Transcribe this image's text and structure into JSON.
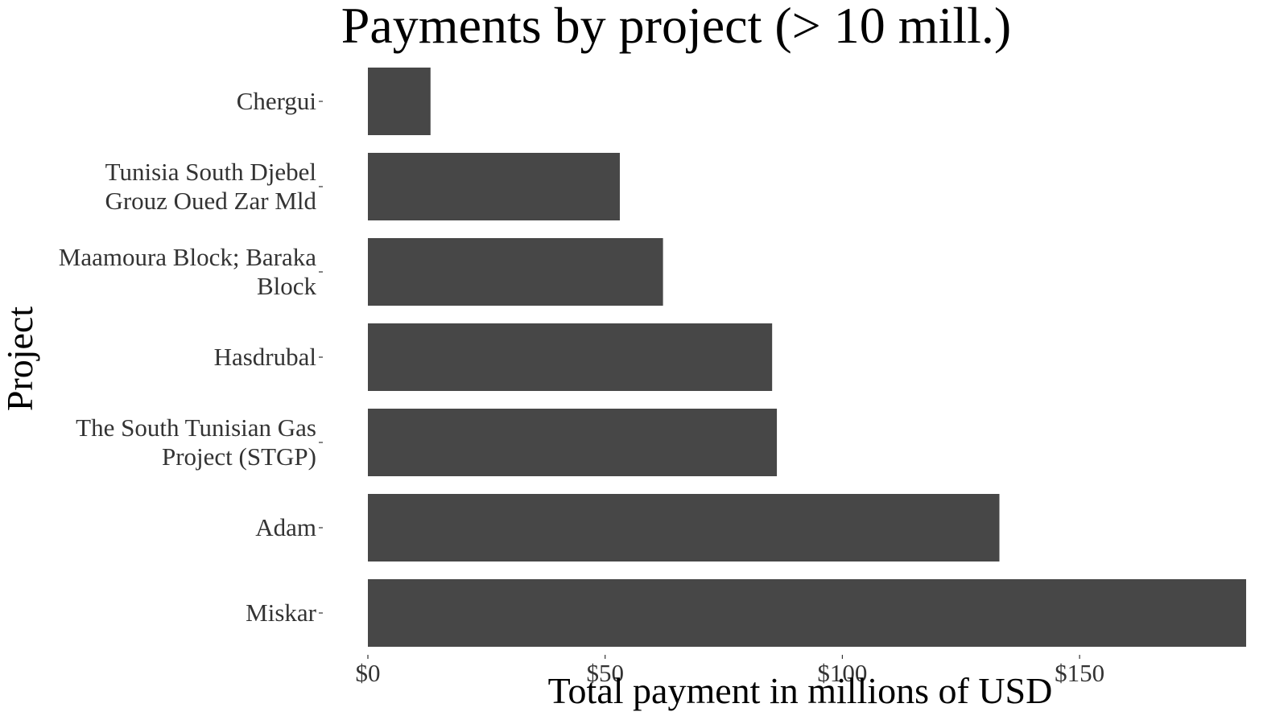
{
  "chart_data": {
    "type": "bar",
    "orientation": "horizontal",
    "title": "Payments by project (> 10 mill.)",
    "xlabel": "Total payment in millions of USD",
    "ylabel": "Project",
    "categories": [
      "Chergui",
      "Tunisia South Djebel Grouz Oued Zar Mld",
      "Maamoura Block; Baraka Block",
      "Hasdrubal",
      "The South Tunisian Gas Project (STGP)",
      "Adam",
      "Miskar"
    ],
    "category_lines": [
      [
        "Chergui"
      ],
      [
        "Tunisia South Djebel",
        "Grouz Oued Zar Mld"
      ],
      [
        "Maamoura Block; Baraka",
        "Block"
      ],
      [
        "Hasdrubal"
      ],
      [
        "The South Tunisian Gas",
        "Project (STGP)"
      ],
      [
        "Adam"
      ],
      [
        "Miskar"
      ]
    ],
    "values": [
      13.2,
      53.1,
      62.2,
      85.2,
      86.2,
      133.1,
      185.1
    ],
    "xlim": [
      0,
      185.1
    ],
    "x_ticks": [
      0,
      50,
      100,
      150
    ],
    "x_tick_labels": [
      "$0",
      "$50",
      "$100",
      "$150"
    ],
    "grid": false,
    "legend": "none",
    "colors": {
      "bar": "#474747",
      "text": "#000000",
      "tick_text": "#333333",
      "tick": "#333333",
      "background": "#ffffff"
    }
  }
}
